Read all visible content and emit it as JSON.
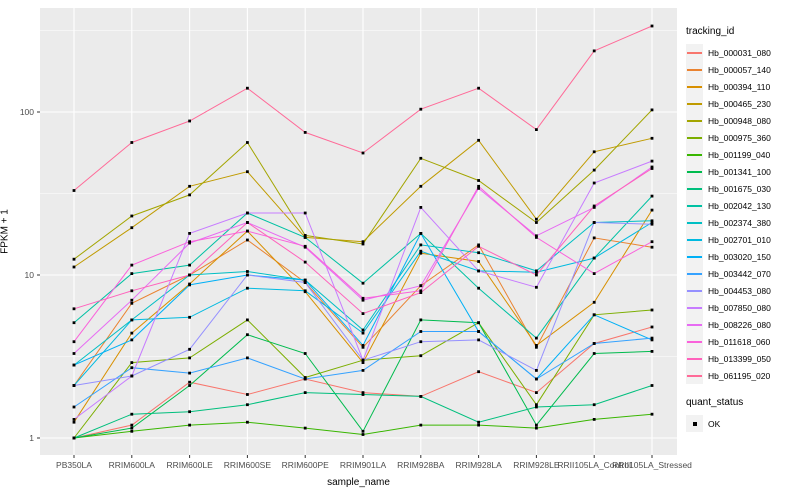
{
  "chart_data": {
    "type": "line",
    "title": "",
    "xlabel": "sample_name",
    "ylabel": "FPKM + 1",
    "yscale": "log10",
    "yticks": [
      1,
      10,
      100
    ],
    "ylim": [
      0.85,
      430
    ],
    "grid": true,
    "panel_background": "#EBEBEB",
    "gridline_color": "#FFFFFF",
    "tick_label_color": "#4D4D4D",
    "point_color": "#000000",
    "legend_position": "right",
    "legend_title": "tracking_id",
    "marker_legend": {
      "title": "quant_status",
      "label": "OK",
      "marker": "black-square"
    },
    "categories": [
      "PB350LA",
      "RRIM600LA",
      "RRIM600LE",
      "RRIM600SE",
      "RRIM600PE",
      "RRIM901LA",
      "RRIM928BA",
      "RRIM928LA",
      "RRIM928LE",
      "RRII105LA_Control",
      "RRII105LA_Stressed"
    ],
    "series": [
      {
        "name": "Hb_000031_080",
        "color": "#F8766D",
        "values": [
          1.0,
          1.2,
          2.2,
          1.85,
          2.3,
          1.9,
          1.8,
          2.55,
          1.9,
          3.8,
          4.8
        ]
      },
      {
        "name": "Hb_000057_140",
        "color": "#EA8331",
        "values": [
          2.1,
          6.7,
          10.0,
          16.4,
          9.0,
          3.6,
          8.6,
          15.3,
          3.6,
          16.9,
          14.8
        ]
      },
      {
        "name": "Hb_000394_110",
        "color": "#D89000",
        "values": [
          1.25,
          4.4,
          8.8,
          18.6,
          7.9,
          2.9,
          13.6,
          12.1,
          3.7,
          6.8,
          25.0
        ]
      },
      {
        "name": "Hb_000465_230",
        "color": "#C09B00",
        "values": [
          11.2,
          19.5,
          35.0,
          43.0,
          17.0,
          16.0,
          35.0,
          67.0,
          22.0,
          57.0,
          69.0
        ]
      },
      {
        "name": "Hb_000948_080",
        "color": "#A3A500",
        "values": [
          12.5,
          23.0,
          31.0,
          65.0,
          17.5,
          15.5,
          52.0,
          38.0,
          21.0,
          44.0,
          103.0
        ]
      },
      {
        "name": "Hb_000975_360",
        "color": "#7CAE00",
        "values": [
          1.0,
          2.9,
          3.1,
          5.3,
          2.35,
          3.0,
          3.2,
          5.1,
          1.6,
          5.7,
          6.1
        ]
      },
      {
        "name": "Hb_001199_040",
        "color": "#39B600",
        "values": [
          1.0,
          1.1,
          1.2,
          1.25,
          1.15,
          1.05,
          1.2,
          1.2,
          1.15,
          1.3,
          1.4
        ]
      },
      {
        "name": "Hb_001341_100",
        "color": "#00BB4E",
        "values": [
          1.0,
          1.15,
          2.1,
          4.3,
          3.3,
          1.1,
          5.3,
          5.1,
          1.2,
          3.3,
          3.4
        ]
      },
      {
        "name": "Hb_001675_030",
        "color": "#00BF7D",
        "values": [
          1.0,
          1.4,
          1.45,
          1.6,
          1.9,
          1.85,
          1.8,
          1.25,
          1.55,
          1.6,
          2.1
        ]
      },
      {
        "name": "Hb_002042_130",
        "color": "#00C1A3",
        "values": [
          5.1,
          10.2,
          11.5,
          24.0,
          17.0,
          8.9,
          18.0,
          8.3,
          4.1,
          12.7,
          30.5
        ]
      },
      {
        "name": "Hb_002374_380",
        "color": "#00BFC4",
        "values": [
          2.8,
          5.3,
          10.0,
          10.5,
          9.3,
          4.6,
          15.3,
          13.7,
          10.6,
          21.0,
          21.5
        ]
      },
      {
        "name": "Hb_002701_010",
        "color": "#00BAE0",
        "values": [
          2.1,
          5.3,
          5.5,
          8.3,
          8.0,
          4.4,
          14.0,
          10.6,
          10.4,
          12.7,
          21.0
        ]
      },
      {
        "name": "Hb_003020_150",
        "color": "#00B0F6",
        "values": [
          2.8,
          4.0,
          8.7,
          10.0,
          9.3,
          3.7,
          18.0,
          4.5,
          2.3,
          5.7,
          4.0
        ]
      },
      {
        "name": "Hb_003442_070",
        "color": "#35A2FF",
        "values": [
          1.55,
          2.7,
          2.5,
          3.1,
          2.3,
          2.6,
          4.5,
          4.5,
          2.3,
          3.8,
          4.1
        ]
      },
      {
        "name": "Hb_004453_080",
        "color": "#9590FF",
        "values": [
          2.1,
          2.4,
          3.5,
          10.0,
          9.0,
          3.0,
          3.9,
          4.0,
          2.6,
          21.0,
          20.5
        ]
      },
      {
        "name": "Hb_007850_080",
        "color": "#C77CFF",
        "values": [
          1.3,
          2.4,
          18.0,
          24.0,
          24.0,
          3.0,
          26.0,
          10.6,
          8.4,
          36.7,
          50.0
        ]
      },
      {
        "name": "Hb_008226_080",
        "color": "#E76BF3",
        "values": [
          3.3,
          7.0,
          15.7,
          21.0,
          14.8,
          7.0,
          8.6,
          34.0,
          17.4,
          26.0,
          46.0
        ]
      },
      {
        "name": "Hb_011618_060",
        "color": "#FA62DB",
        "values": [
          3.9,
          11.5,
          16.0,
          18.6,
          15.0,
          7.2,
          8.0,
          35.0,
          17.0,
          10.2,
          16.0
        ]
      },
      {
        "name": "Hb_013399_050",
        "color": "#FF62BC",
        "values": [
          6.2,
          8.0,
          10.0,
          21.0,
          12.0,
          5.8,
          7.8,
          15.0,
          10.0,
          26.5,
          45.0
        ]
      },
      {
        "name": "Hb_061195_020",
        "color": "#FF6A98",
        "values": [
          33.0,
          65.0,
          88.0,
          140.0,
          75.0,
          56.0,
          104.0,
          140.0,
          78.0,
          237.0,
          337.0
        ]
      }
    ]
  }
}
